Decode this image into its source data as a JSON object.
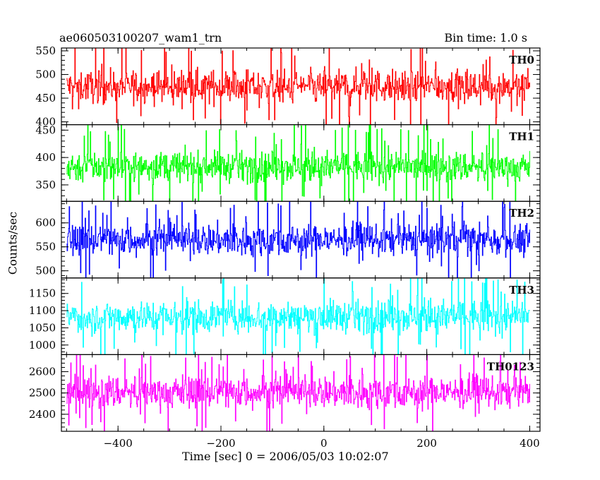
{
  "header": {
    "title": "ae060503100207_wam1_trn",
    "bin_time": "Bin time: 1.0 s"
  },
  "axes": {
    "xlabel": "Time [sec] 0 = 2006/05/03 10:02:07",
    "ylabel": "Counts/sec"
  },
  "chart_data": {
    "type": "line",
    "xlim": [
      -510,
      420
    ],
    "x_ticks": [
      -400,
      -200,
      0,
      200,
      400
    ],
    "x_tick_labels": [
      "−400",
      "−200",
      "0",
      "200",
      "400"
    ],
    "x_range": [
      -500,
      400
    ],
    "series": [
      {
        "name": "TH0",
        "color": "#ff0000",
        "ylim": [
          394,
          556
        ],
        "yticks": [
          400,
          450,
          500,
          550
        ],
        "mean": 475,
        "amplitude": 30,
        "spike": 80
      },
      {
        "name": "TH1",
        "color": "#00ff00",
        "ylim": [
          320,
          460
        ],
        "yticks": [
          350,
          400,
          450
        ],
        "mean": 383,
        "amplitude": 25,
        "spike": 75
      },
      {
        "name": "TH2",
        "color": "#0000ff",
        "ylim": [
          485,
          645
        ],
        "yticks": [
          500,
          550,
          600
        ],
        "mean": 565,
        "amplitude": 30,
        "spike": 80
      },
      {
        "name": "TH3",
        "color": "#00ffff",
        "ylim": [
          972,
          1195
        ],
        "yticks": [
          1000,
          1050,
          1100,
          1150
        ],
        "mean": 1083,
        "amplitude": 42,
        "spike": 115
      },
      {
        "name": "TH0123",
        "color": "#ff00ff",
        "ylim": [
          2320,
          2680
        ],
        "yticks": [
          2400,
          2500,
          2600
        ],
        "mean": 2505,
        "amplitude": 70,
        "spike": 185
      }
    ]
  }
}
